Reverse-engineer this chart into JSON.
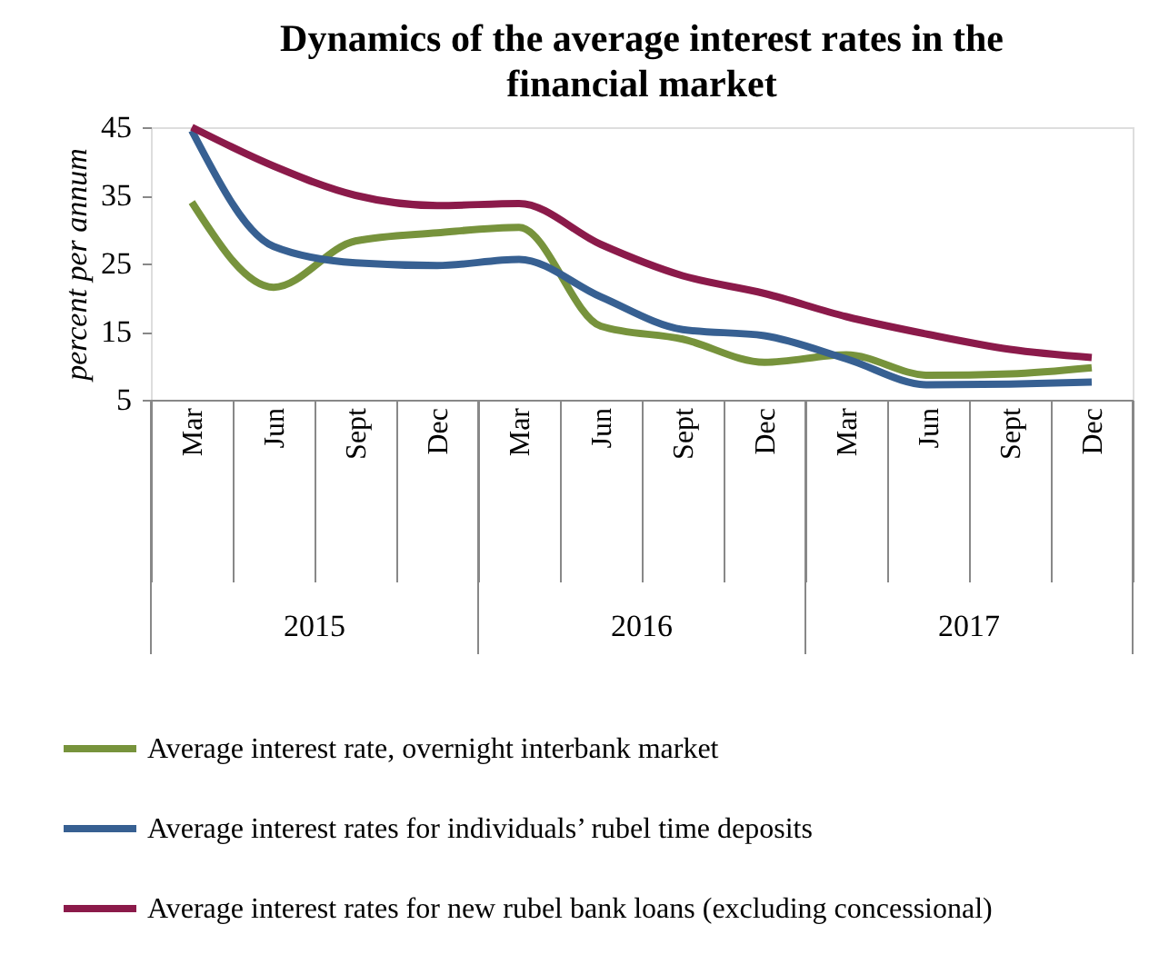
{
  "chart_data": {
    "type": "line",
    "title": "Dynamics of the average interest rates in the financial market",
    "ylabel": "percent per annum",
    "categories": [
      "Mar",
      "Jun",
      "Sept",
      "Dec",
      "Mar",
      "Jun",
      "Sept",
      "Dec",
      "Mar",
      "Jun",
      "Sept",
      "Dec"
    ],
    "annotations": [
      "2015",
      "2016",
      "2017"
    ],
    "ylim": [
      5,
      45
    ],
    "yticks": [
      5,
      15,
      25,
      35,
      45
    ],
    "grid": false,
    "legend": "bottom",
    "marker": "none",
    "line_style": "solid",
    "series": [
      {
        "name": "Average interest rate, overnight interbank market",
        "color": "#77933c",
        "values": [
          34,
          21.5,
          28.3,
          29.5,
          30.3,
          15.8,
          13.9,
          10.5,
          11.6,
          8.6,
          8.8,
          9.7
        ]
      },
      {
        "name": "Average interest rates for individuals’ rubel time deposits",
        "color": "#376092",
        "values": [
          44.5,
          27.5,
          25.1,
          24.7,
          25.6,
          20.1,
          15.3,
          14.4,
          11,
          7.2,
          7.3,
          7.6
        ]
      },
      {
        "name": "Average interest rates for new rubel bank loans (excluding concessional)",
        "color": "#8b1a4a",
        "values": [
          45,
          39.3,
          35,
          33.5,
          33.8,
          27.8,
          23.2,
          20.6,
          17.2,
          14.6,
          12.4,
          11.2
        ]
      }
    ]
  }
}
